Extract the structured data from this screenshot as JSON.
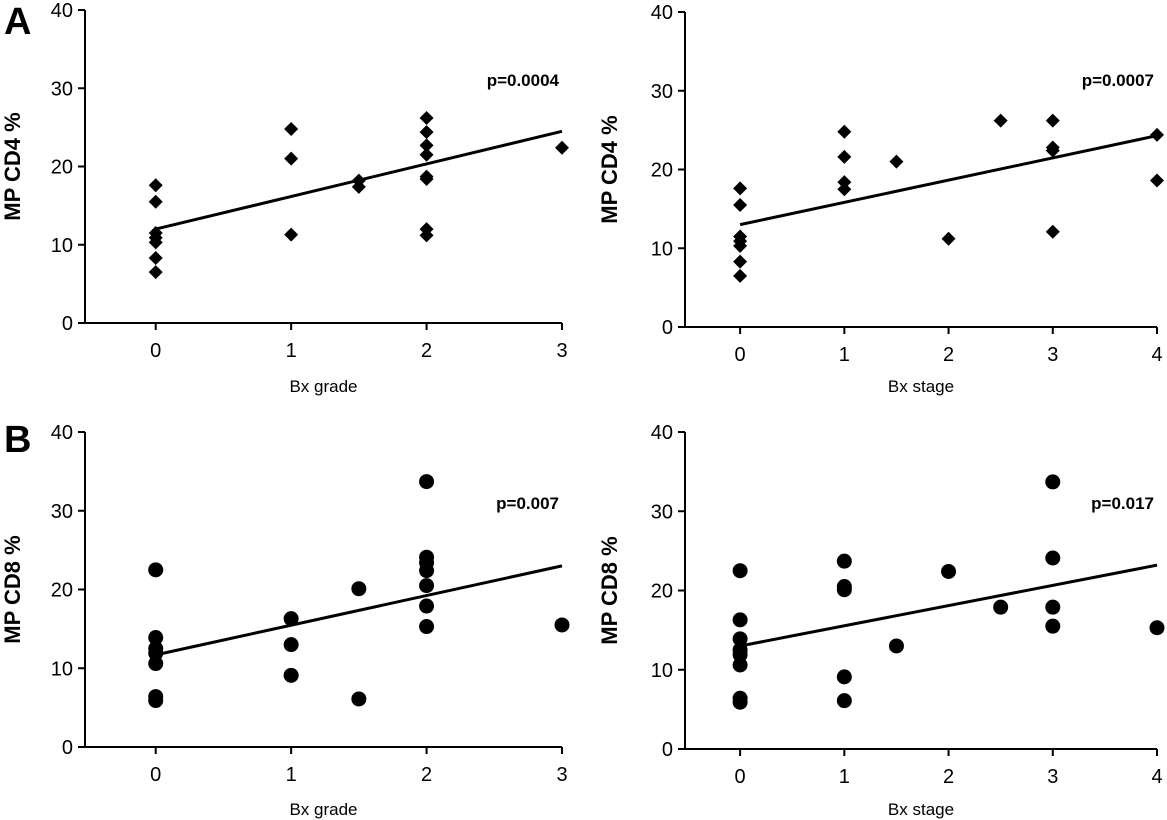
{
  "panel_labels": [
    "A",
    "B"
  ],
  "chart_data": [
    {
      "panel": "A",
      "type": "scatter",
      "marker": "diamond",
      "xlabel": "Bx grade",
      "ylabel": "MP CD4 %",
      "annotation": "p=0.0004",
      "xlim": [
        -0.5,
        3
      ],
      "ylim": [
        0,
        40
      ],
      "xticks": [
        0,
        1,
        2,
        3
      ],
      "yticks": [
        0,
        10,
        20,
        30,
        40
      ],
      "grid": false,
      "points": [
        {
          "x": 0,
          "y": 17.6
        },
        {
          "x": 0,
          "y": 15.5
        },
        {
          "x": 0,
          "y": 11.5
        },
        {
          "x": 0,
          "y": 10.9
        },
        {
          "x": 0,
          "y": 10.3
        },
        {
          "x": 0,
          "y": 8.3
        },
        {
          "x": 0,
          "y": 6.5
        },
        {
          "x": 1,
          "y": 24.8
        },
        {
          "x": 1,
          "y": 21.0
        },
        {
          "x": 1,
          "y": 11.3
        },
        {
          "x": 1.5,
          "y": 18.2
        },
        {
          "x": 1.5,
          "y": 17.4
        },
        {
          "x": 2,
          "y": 26.2
        },
        {
          "x": 2,
          "y": 24.4
        },
        {
          "x": 2,
          "y": 22.7
        },
        {
          "x": 2,
          "y": 21.5
        },
        {
          "x": 2,
          "y": 18.7
        },
        {
          "x": 2,
          "y": 18.4
        },
        {
          "x": 2,
          "y": 12.0
        },
        {
          "x": 2,
          "y": 11.2
        },
        {
          "x": 3,
          "y": 22.4
        }
      ],
      "fit": [
        {
          "x": 0,
          "y": 12.0
        },
        {
          "x": 3,
          "y": 24.5
        }
      ]
    },
    {
      "panel": "A",
      "type": "scatter",
      "marker": "diamond",
      "xlabel": "Bx stage",
      "ylabel": "MP CD4 %",
      "annotation": "p=0.0007",
      "xlim": [
        -0.5,
        4
      ],
      "ylim": [
        0,
        40
      ],
      "xticks": [
        0,
        1,
        2,
        3,
        4
      ],
      "yticks": [
        0,
        10,
        20,
        30,
        40
      ],
      "grid": false,
      "points": [
        {
          "x": 0,
          "y": 17.6
        },
        {
          "x": 0,
          "y": 15.5
        },
        {
          "x": 0,
          "y": 11.5
        },
        {
          "x": 0,
          "y": 10.9
        },
        {
          "x": 0,
          "y": 10.3
        },
        {
          "x": 0,
          "y": 8.3
        },
        {
          "x": 0,
          "y": 6.5
        },
        {
          "x": 1,
          "y": 24.8
        },
        {
          "x": 1,
          "y": 21.6
        },
        {
          "x": 1,
          "y": 18.4
        },
        {
          "x": 1,
          "y": 17.5
        },
        {
          "x": 1.5,
          "y": 21.0
        },
        {
          "x": 2,
          "y": 11.2
        },
        {
          "x": 2.5,
          "y": 26.2
        },
        {
          "x": 3,
          "y": 26.2
        },
        {
          "x": 3,
          "y": 22.8
        },
        {
          "x": 3,
          "y": 22.4
        },
        {
          "x": 3,
          "y": 12.1
        },
        {
          "x": 4,
          "y": 24.4
        },
        {
          "x": 4,
          "y": 18.6
        }
      ],
      "fit": [
        {
          "x": 0,
          "y": 13.0
        },
        {
          "x": 4,
          "y": 24.3
        }
      ]
    },
    {
      "panel": "B",
      "type": "scatter",
      "marker": "circle",
      "xlabel": "Bx grade",
      "ylabel": "MP CD8 %",
      "annotation": "p=0.007",
      "xlim": [
        -0.5,
        3
      ],
      "ylim": [
        0,
        40
      ],
      "xticks": [
        0,
        1,
        2,
        3
      ],
      "yticks": [
        0,
        10,
        20,
        30,
        40
      ],
      "grid": false,
      "points": [
        {
          "x": 0,
          "y": 22.5
        },
        {
          "x": 0,
          "y": 13.9
        },
        {
          "x": 0,
          "y": 12.5
        },
        {
          "x": 0,
          "y": 11.9
        },
        {
          "x": 0,
          "y": 10.6
        },
        {
          "x": 0,
          "y": 6.4
        },
        {
          "x": 0,
          "y": 5.9
        },
        {
          "x": 1,
          "y": 16.3
        },
        {
          "x": 1,
          "y": 13.0
        },
        {
          "x": 1,
          "y": 9.1
        },
        {
          "x": 1.5,
          "y": 20.1
        },
        {
          "x": 1.5,
          "y": 6.1
        },
        {
          "x": 2,
          "y": 33.7
        },
        {
          "x": 2,
          "y": 24.1
        },
        {
          "x": 2,
          "y": 23.4
        },
        {
          "x": 2,
          "y": 22.4
        },
        {
          "x": 2,
          "y": 20.5
        },
        {
          "x": 2,
          "y": 17.9
        },
        {
          "x": 2,
          "y": 15.3
        },
        {
          "x": 3,
          "y": 15.5
        }
      ],
      "fit": [
        {
          "x": 0,
          "y": 11.7
        },
        {
          "x": 3,
          "y": 23.0
        }
      ]
    },
    {
      "panel": "B",
      "type": "scatter",
      "marker": "circle",
      "xlabel": "Bx stage",
      "ylabel": "MP CD8 %",
      "annotation": "p=0.017",
      "xlim": [
        -0.5,
        4
      ],
      "ylim": [
        0,
        40
      ],
      "xticks": [
        0,
        1,
        2,
        3,
        4
      ],
      "yticks": [
        0,
        10,
        20,
        30,
        40
      ],
      "grid": false,
      "points": [
        {
          "x": 0,
          "y": 22.5
        },
        {
          "x": 0,
          "y": 16.3
        },
        {
          "x": 0,
          "y": 13.9
        },
        {
          "x": 0,
          "y": 12.5
        },
        {
          "x": 0,
          "y": 11.9
        },
        {
          "x": 0,
          "y": 10.6
        },
        {
          "x": 0,
          "y": 6.4
        },
        {
          "x": 0,
          "y": 5.9
        },
        {
          "x": 1,
          "y": 23.7
        },
        {
          "x": 1,
          "y": 20.5
        },
        {
          "x": 1,
          "y": 20.1
        },
        {
          "x": 1,
          "y": 9.1
        },
        {
          "x": 1,
          "y": 6.1
        },
        {
          "x": 1.5,
          "y": 13.0
        },
        {
          "x": 2,
          "y": 22.4
        },
        {
          "x": 2.5,
          "y": 17.9
        },
        {
          "x": 3,
          "y": 33.7
        },
        {
          "x": 3,
          "y": 24.1
        },
        {
          "x": 3,
          "y": 17.9
        },
        {
          "x": 3,
          "y": 15.5
        },
        {
          "x": 4,
          "y": 15.3
        }
      ],
      "fit": [
        {
          "x": 0,
          "y": 13.0
        },
        {
          "x": 4,
          "y": 23.2
        }
      ]
    }
  ]
}
